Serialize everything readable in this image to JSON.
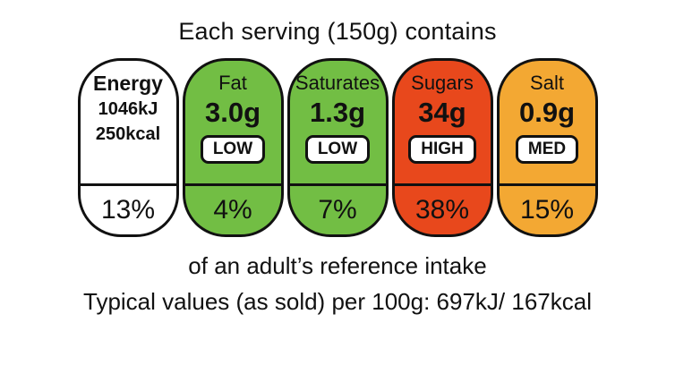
{
  "title": "Each serving (150g) contains",
  "columns": [
    {
      "name": "Energy",
      "line1": "1046kJ",
      "line2": "250kcal",
      "percent": "13%",
      "color": "#ffffff"
    },
    {
      "name": "Fat",
      "value": "3.0g",
      "badge": "LOW",
      "percent": "4%",
      "color": "#72be44"
    },
    {
      "name": "Saturates",
      "value": "1.3g",
      "badge": "LOW",
      "percent": "7%",
      "color": "#72be44"
    },
    {
      "name": "Sugars",
      "value": "34g",
      "badge": "HIGH",
      "percent": "38%",
      "color": "#e8481c"
    },
    {
      "name": "Salt",
      "value": "0.9g",
      "badge": "MED",
      "percent": "15%",
      "color": "#f3a833"
    }
  ],
  "footer_line1": "of an adult’s reference intake",
  "footer_line2": "Typical values (as sold) per 100g: 697kJ/ 167kcal"
}
